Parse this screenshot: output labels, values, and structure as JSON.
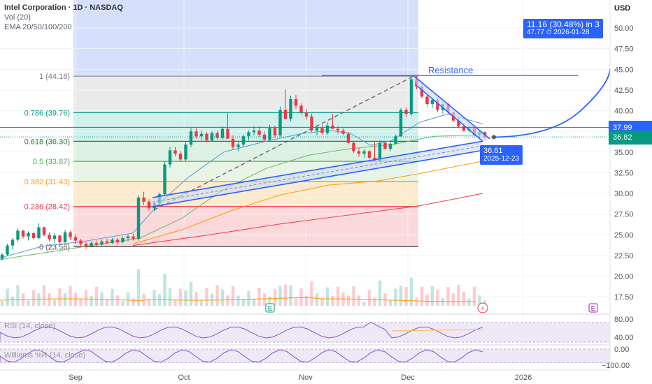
{
  "header": {
    "symbol": "Intel Corporation · 1D · NASDAQ",
    "vol": "Vol (20)",
    "ema": "EMA 20/50/100/200"
  },
  "currency": "USD",
  "price_axis": {
    "ticks": [
      "50.00",
      "47.50",
      "45.00",
      "42.50",
      "40.00",
      "37.50",
      "35.00",
      "32.50",
      "30.00",
      "27.50",
      "25.00",
      "22.50",
      "20.00",
      "17.50"
    ],
    "current_badge": "37.99",
    "last_badge": "36.82"
  },
  "osc_axis": {
    "rsi_ticks": [
      "80.00",
      "40.00"
    ],
    "wr_ticks": [
      "0.00",
      "−100.00"
    ]
  },
  "time_axis": [
    "Sep",
    "Oct",
    "Nov",
    "Dec",
    "2026"
  ],
  "fib_levels": [
    {
      "label": "1 (44.18)",
      "price": 44.18,
      "color": "#787b86"
    },
    {
      "label": "0.786 (39.76)",
      "price": 39.76,
      "color": "#089981"
    },
    {
      "label": "0.618 (36.30)",
      "price": 36.3,
      "color": "#2e7d32"
    },
    {
      "label": "0.5 (33.87)",
      "price": 33.87,
      "color": "#4caf50"
    },
    {
      "label": "0.382 (31.43)",
      "price": 31.43,
      "color": "#ff9800"
    },
    {
      "label": "0.236 (28.42)",
      "price": 28.42,
      "color": "#f23645"
    },
    {
      "label": "0 (23.56)",
      "price": 23.56,
      "color": "#555555"
    }
  ],
  "annotations": {
    "resistance": "Resistance",
    "projection_title": "11.16 (30.48%) in 3",
    "projection_sub": "47.77 ⏱ 2026-01-28",
    "point_price": "36.61",
    "point_date": "2025-12-23"
  },
  "panes": {
    "rsi_label": "RSI (14, close)",
    "wr_label": "Williams %R (14, close)"
  },
  "icons": {
    "earnings": "E",
    "flash": "⚡"
  },
  "colors": {
    "up": "#089981",
    "down": "#f23645",
    "accent": "#2962ff",
    "ema20": "#5b9bd5",
    "ema50": "#66bb6a",
    "ema100": "#ff9800",
    "ema200": "#f23645"
  },
  "chart_data": {
    "type": "candlestick",
    "candles_ohlc": [
      [
        22.1,
        22.8,
        21.9,
        22.6
      ],
      [
        22.6,
        23.9,
        22.4,
        23.7
      ],
      [
        23.7,
        24.6,
        23.2,
        24.4
      ],
      [
        24.4,
        25.8,
        24.1,
        25.5
      ],
      [
        25.5,
        25.6,
        24.5,
        24.8
      ],
      [
        24.8,
        25.4,
        24.3,
        25.2
      ],
      [
        25.2,
        25.3,
        24.4,
        24.6
      ],
      [
        24.6,
        26.4,
        24.5,
        25.9
      ],
      [
        25.9,
        26.0,
        24.8,
        25.0
      ],
      [
        25.0,
        25.3,
        24.2,
        24.5
      ],
      [
        24.5,
        25.2,
        24.0,
        24.9
      ],
      [
        24.9,
        25.0,
        23.7,
        24.1
      ],
      [
        24.1,
        25.6,
        24.0,
        25.3
      ],
      [
        25.3,
        25.5,
        24.4,
        24.7
      ],
      [
        24.7,
        25.1,
        23.9,
        24.3
      ],
      [
        24.3,
        24.5,
        23.6,
        23.9
      ],
      [
        23.9,
        24.1,
        23.3,
        23.6
      ],
      [
        23.6,
        24.2,
        23.5,
        24.0
      ],
      [
        24.0,
        24.3,
        23.6,
        23.8
      ],
      [
        23.8,
        24.4,
        23.7,
        24.2
      ],
      [
        24.2,
        24.5,
        23.9,
        24.0
      ],
      [
        24.0,
        24.6,
        23.9,
        24.4
      ],
      [
        24.4,
        24.6,
        23.8,
        24.1
      ],
      [
        24.1,
        24.8,
        24.0,
        24.6
      ],
      [
        24.6,
        25.0,
        24.2,
        24.8
      ],
      [
        24.8,
        25.1,
        24.3,
        24.5
      ],
      [
        24.5,
        29.8,
        24.3,
        29.5
      ],
      [
        29.5,
        30.2,
        28.6,
        29.0
      ],
      [
        29.0,
        29.3,
        27.9,
        28.2
      ],
      [
        28.2,
        29.0,
        27.8,
        28.8
      ],
      [
        28.8,
        30.1,
        28.6,
        29.9
      ],
      [
        29.9,
        33.9,
        29.7,
        33.5
      ],
      [
        33.5,
        35.6,
        33.1,
        35.2
      ],
      [
        35.2,
        35.6,
        34.5,
        34.8
      ],
      [
        34.8,
        35.1,
        33.8,
        34.1
      ],
      [
        34.1,
        36.2,
        33.9,
        35.9
      ],
      [
        35.9,
        37.9,
        35.6,
        37.5
      ],
      [
        37.5,
        37.9,
        36.6,
        36.9
      ],
      [
        36.9,
        37.6,
        36.4,
        37.2
      ],
      [
        37.2,
        37.4,
        36.2,
        36.4
      ],
      [
        36.4,
        37.5,
        36.3,
        37.3
      ],
      [
        37.3,
        37.6,
        36.5,
        36.7
      ],
      [
        36.7,
        38.1,
        36.5,
        37.8
      ],
      [
        37.8,
        39.8,
        37.6,
        36.6
      ],
      [
        36.6,
        37.0,
        35.3,
        35.6
      ],
      [
        35.6,
        36.2,
        35.1,
        35.9
      ],
      [
        35.9,
        37.1,
        35.6,
        36.9
      ],
      [
        36.9,
        37.6,
        36.4,
        37.4
      ],
      [
        37.4,
        38.1,
        37.0,
        37.6
      ],
      [
        37.6,
        38.1,
        36.8,
        37.1
      ],
      [
        37.1,
        37.5,
        36.2,
        36.5
      ],
      [
        36.5,
        38.3,
        36.3,
        37.9
      ],
      [
        37.9,
        38.2,
        36.7,
        37.0
      ],
      [
        37.0,
        40.5,
        36.8,
        40.1
      ],
      [
        40.1,
        42.6,
        39.7,
        39.0
      ],
      [
        39.0,
        41.8,
        38.7,
        41.4
      ],
      [
        41.4,
        41.9,
        40.2,
        40.6
      ],
      [
        40.6,
        40.9,
        39.5,
        39.8
      ],
      [
        39.8,
        40.2,
        38.9,
        39.3
      ],
      [
        39.3,
        39.6,
        37.4,
        37.6
      ],
      [
        37.6,
        38.2,
        37.0,
        37.9
      ],
      [
        37.9,
        38.3,
        37.1,
        37.3
      ],
      [
        37.3,
        38.6,
        37.1,
        38.2
      ],
      [
        38.2,
        39.6,
        37.9,
        37.8
      ],
      [
        37.8,
        38.1,
        37.2,
        37.6
      ],
      [
        37.6,
        37.9,
        37.0,
        37.2
      ],
      [
        37.2,
        37.4,
        35.9,
        36.1
      ],
      [
        36.1,
        36.3,
        34.9,
        35.1
      ],
      [
        35.1,
        35.5,
        34.4,
        34.8
      ],
      [
        34.8,
        35.4,
        34.3,
        35.1
      ],
      [
        35.1,
        35.2,
        34.1,
        34.3
      ],
      [
        34.3,
        36.2,
        34.1,
        33.9
      ],
      [
        33.9,
        36.4,
        33.8,
        36.1
      ],
      [
        36.1,
        36.3,
        35.2,
        35.4
      ],
      [
        35.4,
        36.2,
        35.1,
        36.0
      ],
      [
        36.0,
        37.1,
        35.9,
        36.9
      ],
      [
        36.9,
        40.3,
        36.8,
        40.1
      ],
      [
        40.1,
        40.4,
        39.2,
        39.6
      ],
      [
        39.6,
        44.2,
        39.4,
        43.8
      ],
      [
        43.8,
        44.2,
        42.6,
        42.9
      ],
      [
        42.9,
        43.3,
        41.5,
        41.7
      ],
      [
        41.7,
        42.0,
        40.5,
        40.8
      ],
      [
        40.8,
        41.6,
        40.3,
        41.3
      ],
      [
        41.3,
        41.5,
        39.8,
        40.1
      ],
      [
        40.1,
        41.0,
        39.6,
        40.8
      ],
      [
        40.8,
        41.0,
        39.5,
        39.8
      ],
      [
        39.8,
        39.9,
        38.6,
        38.8
      ],
      [
        38.8,
        39.2,
        37.9,
        38.1
      ],
      [
        38.1,
        38.5,
        37.4,
        37.6
      ],
      [
        37.6,
        38.3,
        37.3,
        38.0
      ],
      [
        38.0,
        38.2,
        36.9,
        37.1
      ],
      [
        37.1,
        37.6,
        36.7,
        37.4
      ],
      [
        37.4,
        37.5,
        36.5,
        36.8
      ]
    ],
    "projection": {
      "from_price": 36.61,
      "to_price": 47.77,
      "change": "11.16 (30.48%)"
    }
  }
}
